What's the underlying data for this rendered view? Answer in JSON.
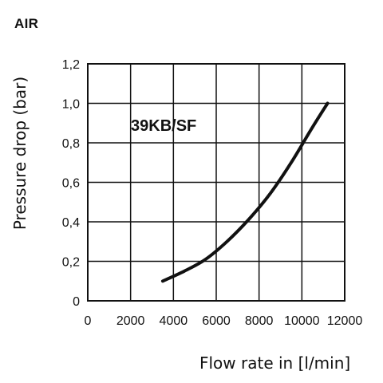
{
  "medium_label": "AIR",
  "chart_data": {
    "type": "line",
    "xlabel": "Flow rate in [l/min]",
    "ylabel": "Pressure drop (bar)",
    "xlim": [
      0,
      12000
    ],
    "ylim": [
      0,
      1.2
    ],
    "x_ticks": [
      0,
      2000,
      4000,
      6000,
      8000,
      10000,
      12000
    ],
    "x_tick_labels": [
      "0",
      "2000",
      "4000",
      "6000",
      "8000",
      "10000",
      "12000"
    ],
    "y_ticks": [
      0,
      0.2,
      0.4,
      0.6,
      0.8,
      1.0,
      1.2
    ],
    "y_tick_labels": [
      "0",
      "0,2",
      "0,4",
      "0,6",
      "0,8",
      "1,0",
      "1,2"
    ],
    "grid": true,
    "series": [
      {
        "name": "39KB/SF",
        "x": [
          3500,
          4500,
          5500,
          6500,
          7500,
          8500,
          9500,
          10500,
          11200
        ],
        "y": [
          0.1,
          0.15,
          0.21,
          0.3,
          0.41,
          0.54,
          0.7,
          0.88,
          1.0
        ]
      }
    ]
  }
}
